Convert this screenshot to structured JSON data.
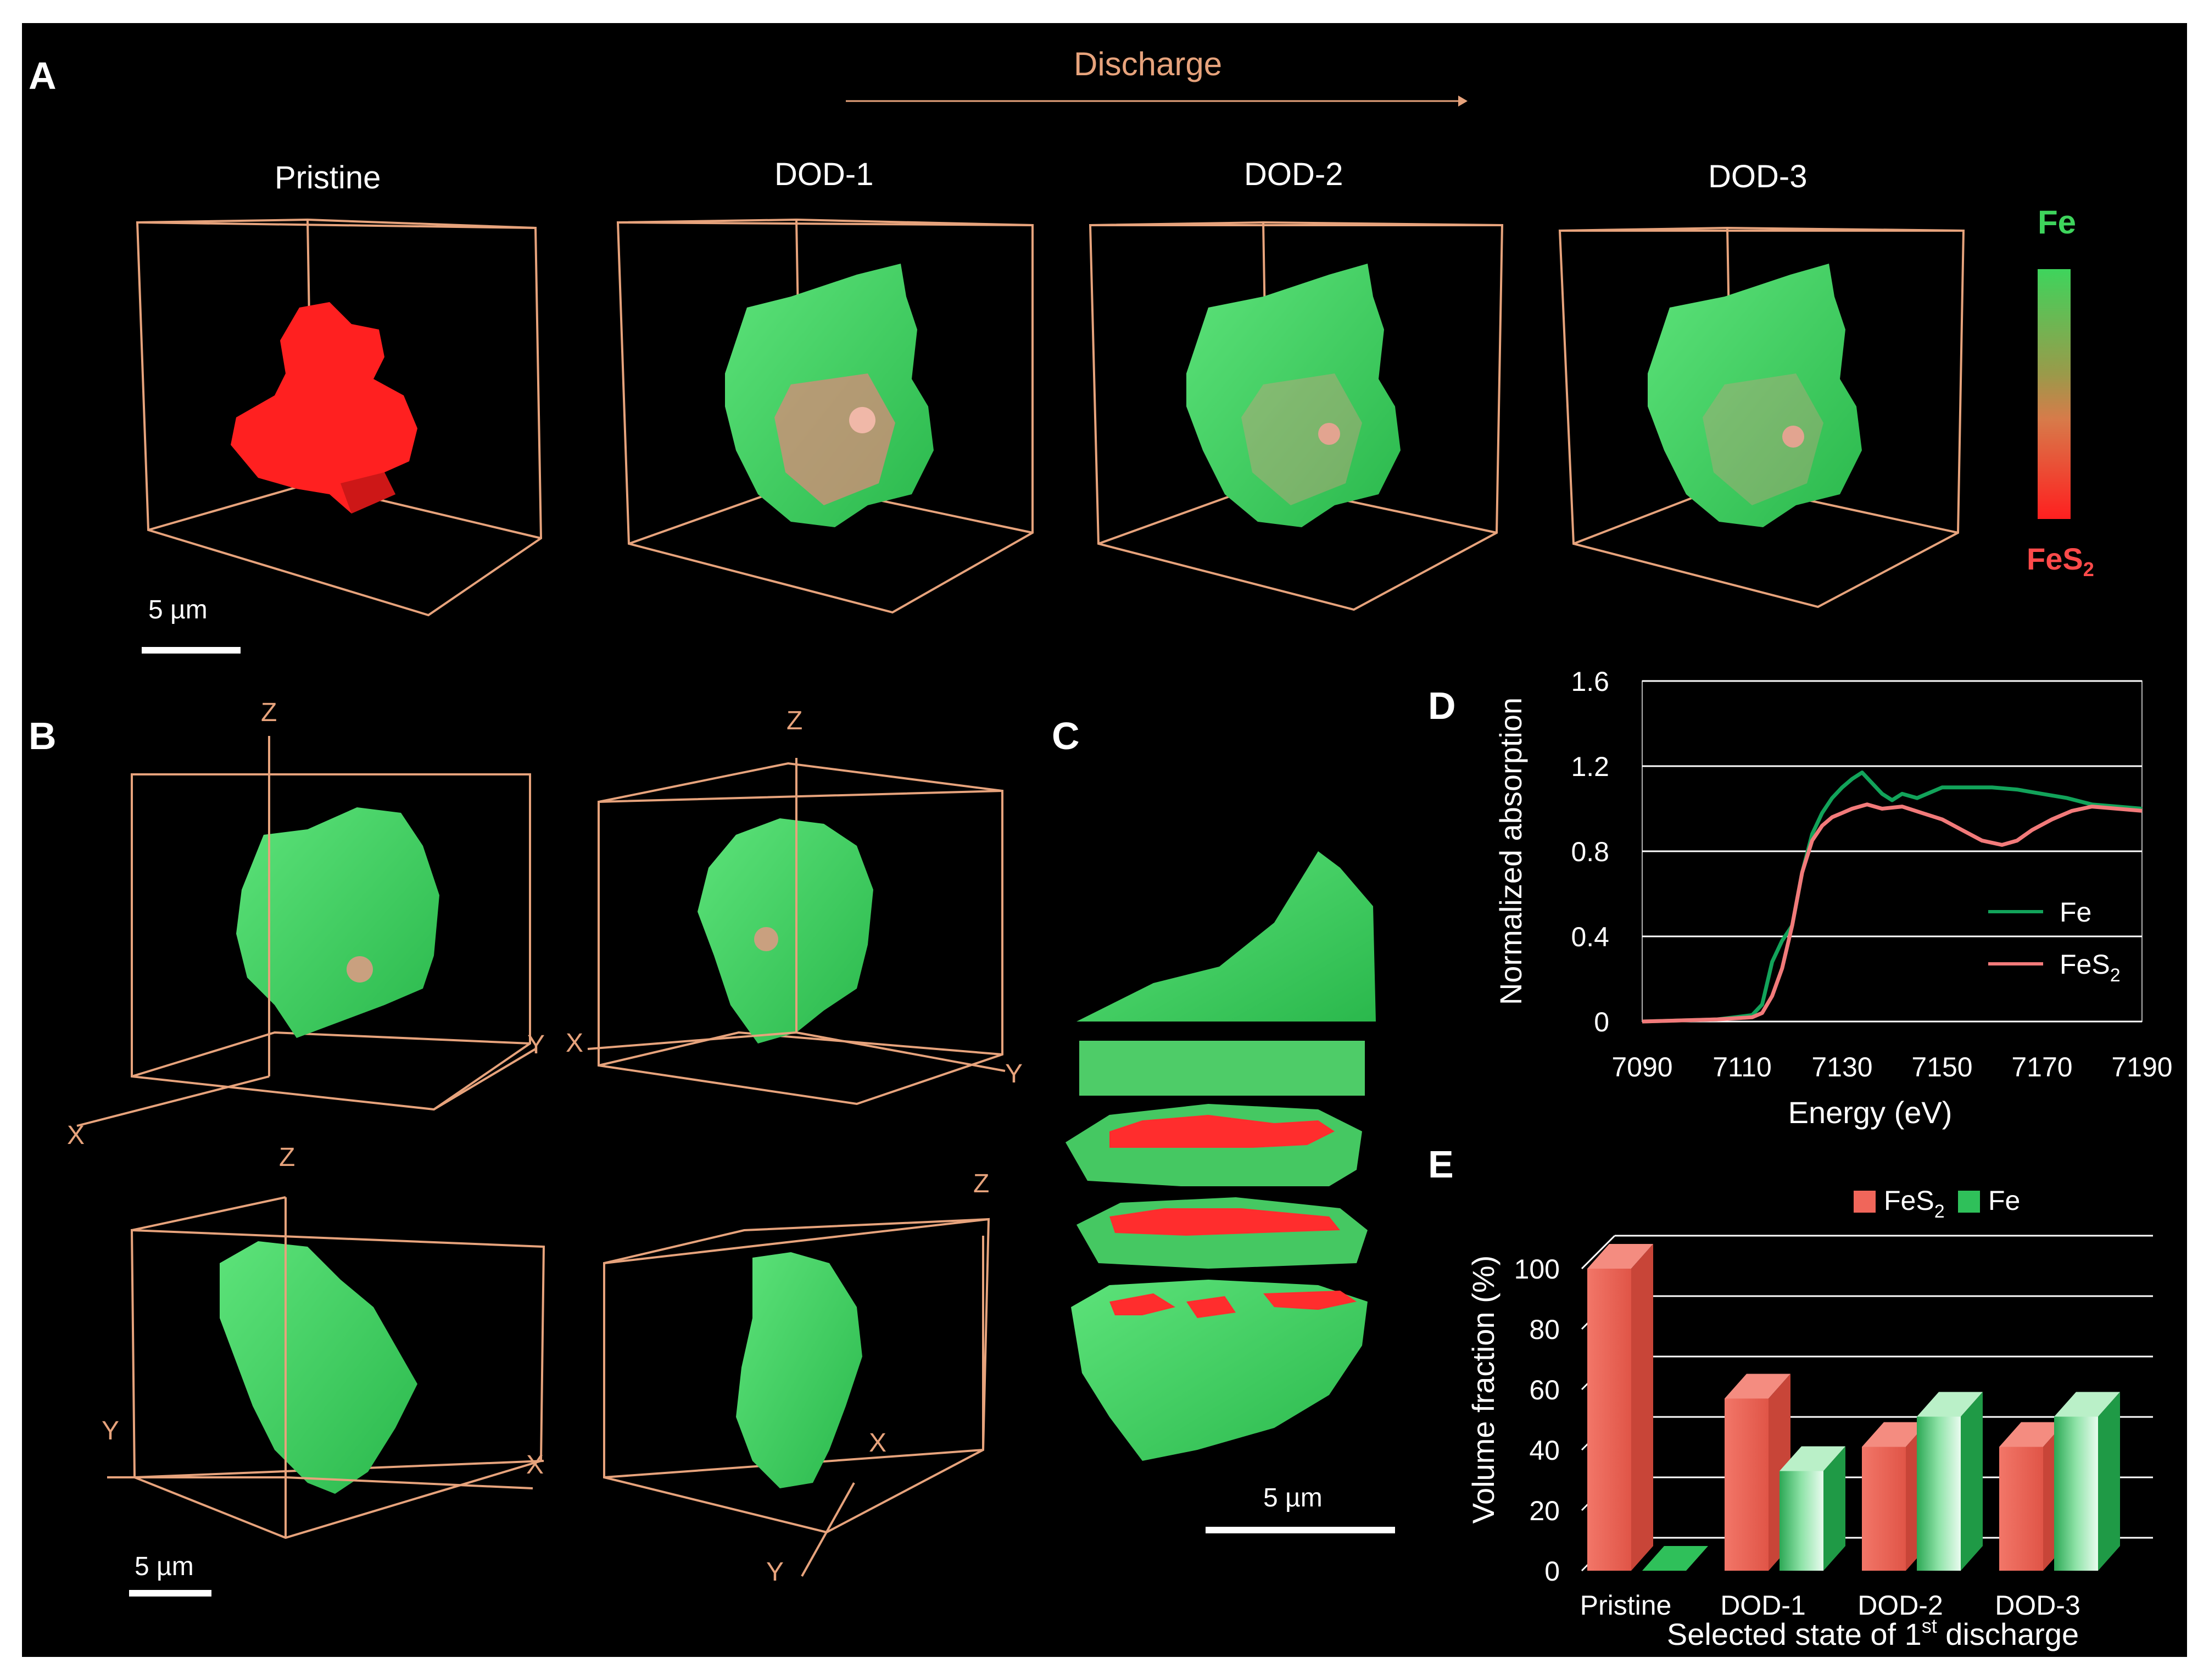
{
  "panels": {
    "A": {
      "label": "A",
      "arrow_label": "Discharge",
      "states": [
        "Pristine",
        "DOD-1",
        "DOD-2",
        "DOD-3"
      ],
      "colorbar_top": "Fe",
      "colorbar_bottom": "FeS",
      "colorbar_bottom_sub": "2",
      "scale_bar": "5 µm"
    },
    "B": {
      "label": "B",
      "axes": {
        "z": "Z",
        "x": "X",
        "y": "Y"
      },
      "scale_bar": "5 µm"
    },
    "C": {
      "label": "C",
      "scale_bar": "5 µm"
    },
    "D": {
      "label": "D"
    },
    "E": {
      "label": "E"
    }
  },
  "colors": {
    "fe_green": "#3ed45c",
    "fes2_red": "#ff2b2b",
    "box_line": "#e7a37c",
    "bar_red": "#f0665a",
    "bar_green": "#2fc05a"
  },
  "chart_data": [
    {
      "id": "D",
      "type": "line",
      "title": "",
      "xlabel": "Energy (eV)",
      "ylabel": "Normalized absorption",
      "xlim": [
        7090,
        7190
      ],
      "ylim": [
        0,
        1.6
      ],
      "xticks": [
        "7090",
        "7110",
        "7130",
        "7150",
        "7170",
        "7190"
      ],
      "yticks": [
        "0",
        "0.4",
        "0.8",
        "1.2",
        "1.6"
      ],
      "grid": true,
      "legend_position": "lower-right",
      "series": [
        {
          "name": "Fe",
          "sub": "",
          "color": "#12a35a",
          "x": [
            7090,
            7105,
            7112,
            7114,
            7116,
            7118,
            7120,
            7122,
            7124,
            7126,
            7128,
            7130,
            7132,
            7134,
            7136,
            7138,
            7140,
            7142,
            7145,
            7150,
            7155,
            7160,
            7165,
            7170,
            7175,
            7180,
            7185,
            7190
          ],
          "y": [
            0,
            0.01,
            0.03,
            0.08,
            0.28,
            0.38,
            0.45,
            0.7,
            0.88,
            0.98,
            1.05,
            1.1,
            1.14,
            1.17,
            1.12,
            1.07,
            1.04,
            1.07,
            1.05,
            1.1,
            1.1,
            1.1,
            1.09,
            1.07,
            1.05,
            1.02,
            1.01,
            1.0
          ]
        },
        {
          "name": "FeS",
          "sub": "2",
          "color": "#f27a7a",
          "x": [
            7090,
            7105,
            7112,
            7114,
            7116,
            7118,
            7120,
            7122,
            7124,
            7126,
            7128,
            7130,
            7132,
            7135,
            7138,
            7142,
            7146,
            7150,
            7154,
            7158,
            7162,
            7165,
            7168,
            7172,
            7176,
            7180,
            7185,
            7190
          ],
          "y": [
            0,
            0.01,
            0.02,
            0.04,
            0.12,
            0.25,
            0.45,
            0.7,
            0.85,
            0.92,
            0.96,
            0.98,
            1.0,
            1.02,
            1.0,
            1.01,
            0.98,
            0.95,
            0.9,
            0.85,
            0.83,
            0.85,
            0.9,
            0.95,
            0.99,
            1.01,
            1.0,
            0.99
          ]
        }
      ]
    },
    {
      "id": "E",
      "type": "bar",
      "title": "",
      "xlabel": "Selected state of 1",
      "xlabel_sup": "st",
      "xlabel_tail": " discharge",
      "ylabel": "Volume fraction (%)",
      "ylim": [
        0,
        100
      ],
      "yticks": [
        "0",
        "20",
        "40",
        "60",
        "80",
        "100"
      ],
      "categories": [
        "Pristine",
        "DOD-1",
        "DOD-2",
        "DOD-3"
      ],
      "legend_position": "top-right",
      "series": [
        {
          "name": "FeS",
          "sub": "2",
          "color": "#f0665a",
          "values": [
            100,
            57,
            41,
            41
          ]
        },
        {
          "name": "Fe",
          "sub": "",
          "color": "#2fc05a",
          "values": [
            0,
            33,
            51,
            51
          ]
        }
      ]
    }
  ]
}
